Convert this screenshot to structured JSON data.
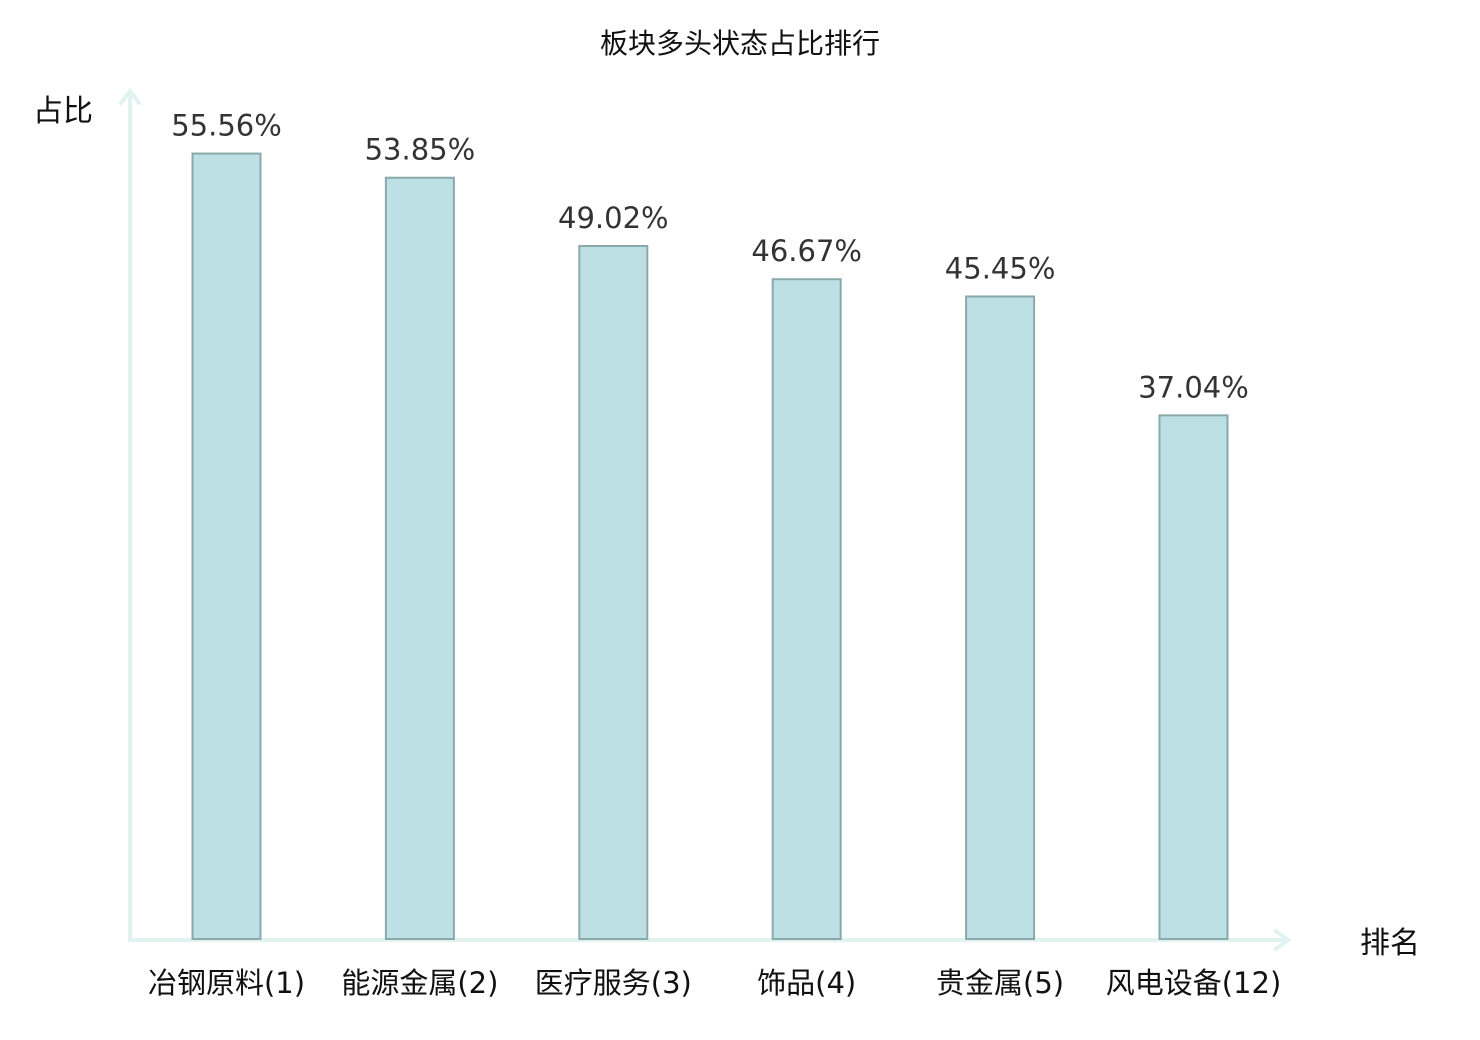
{
  "chart_data": {
    "type": "bar",
    "title": "板块多头状态占比排行",
    "ylabel": "占比",
    "xlabel": "排名",
    "ylim": [
      0,
      60
    ],
    "categories": [
      "冶钢原料(1)",
      "能源金属(2)",
      "医疗服务(3)",
      "饰品(4)",
      "贵金属(5)",
      "风电设备(12)"
    ],
    "values": [
      55.56,
      53.85,
      49.02,
      46.67,
      45.45,
      37.04
    ],
    "value_labels": [
      "55.56%",
      "53.85%",
      "49.02%",
      "46.67%",
      "45.45%",
      "37.04%"
    ],
    "highlight_index": 5,
    "grid": false,
    "legend": "none",
    "colors": {
      "bar_fill": "#bce0e3",
      "bar_stroke": "#8aa9ab",
      "axis": "#e0f3f0",
      "highlight_text": "#e8141b",
      "text": "#111111"
    }
  }
}
